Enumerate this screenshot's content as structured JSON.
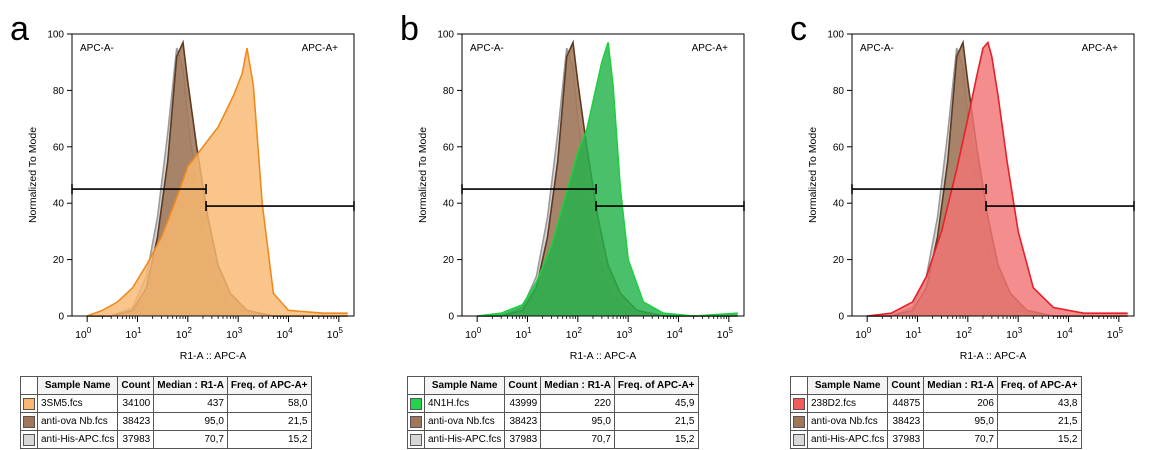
{
  "chart_data": [
    {
      "type": "area",
      "panel": "a",
      "ylabel": "Normalized To Mode",
      "xlabel": "R1-A :: APC-A",
      "x_scale": "log",
      "xlim": [
        0.5,
        200000
      ],
      "ylim": [
        0,
        100
      ],
      "y_ticks": [
        "0",
        "20",
        "40",
        "60",
        "80",
        "100"
      ],
      "x_ticks": [
        "0",
        "1",
        "2",
        "3",
        "4",
        "5"
      ],
      "gates": [
        {
          "label": "APC-A-",
          "y": 45,
          "x_from": 0.5,
          "x_to": 230
        },
        {
          "label": "APC-A+",
          "y": 39,
          "x_from": 230,
          "x_to": 200000
        }
      ],
      "series": [
        {
          "name": "3SM5.fcs",
          "role": "sample",
          "fill": "#f9b870",
          "line": "#ef8a1e",
          "x": [
            1,
            2,
            4,
            8,
            15,
            30,
            60,
            100,
            200,
            400,
            800,
            1200,
            1500,
            2000,
            3000,
            5000,
            10000,
            50000,
            150000
          ],
          "y": [
            0,
            2,
            5,
            10,
            18,
            28,
            42,
            53,
            60,
            67,
            78,
            86,
            95,
            82,
            40,
            8,
            2,
            1,
            1
          ]
        },
        {
          "name": "anti-ova Nb.fcs",
          "role": "control",
          "fill": "#a0775a",
          "line": "#5e3a22",
          "x": [
            1,
            3,
            8,
            15,
            25,
            40,
            60,
            80,
            100,
            150,
            250,
            400,
            700,
            1500,
            5000,
            150000
          ],
          "y": [
            0,
            0,
            2,
            10,
            28,
            55,
            92,
            97,
            83,
            60,
            35,
            18,
            8,
            2,
            0,
            0
          ]
        },
        {
          "name": "anti-His-APC.fcs",
          "role": "control",
          "fill": "#cfcfcf",
          "line": "#9a9a9a",
          "x": [
            1,
            3,
            8,
            15,
            25,
            40,
            60,
            80,
            100,
            150,
            250,
            400,
            700,
            1500,
            5000,
            150000
          ],
          "y": [
            0,
            0,
            3,
            14,
            35,
            65,
            95,
            88,
            70,
            45,
            22,
            10,
            4,
            1,
            0,
            0
          ]
        }
      ],
      "table": {
        "headers": [
          "Sample Name",
          "Count",
          "Median : R1-A",
          "Freq. of APC-A+"
        ],
        "rows": [
          {
            "color": "#f9b870",
            "name": "3SM5.fcs",
            "count": "34100",
            "median": "437",
            "freq": "58,0"
          },
          {
            "color": "#a0775a",
            "name": "anti-ova Nb.fcs",
            "count": "38423",
            "median": "95,0",
            "freq": "21,5"
          },
          {
            "color": "#d8d8d8",
            "name": "anti-His-APC.fcs",
            "count": "37983",
            "median": "70,7",
            "freq": "15,2"
          }
        ]
      }
    },
    {
      "type": "area",
      "panel": "b",
      "ylabel": "Normalized To Mode",
      "xlabel": "R1-A :: APC-A",
      "x_scale": "log",
      "xlim": [
        0.5,
        200000
      ],
      "ylim": [
        0,
        100
      ],
      "y_ticks": [
        "0",
        "20",
        "40",
        "60",
        "80",
        "100"
      ],
      "x_ticks": [
        "0",
        "1",
        "2",
        "3",
        "4",
        "5"
      ],
      "gates": [
        {
          "label": "APC-A-",
          "y": 45,
          "x_from": 0.5,
          "x_to": 230
        },
        {
          "label": "APC-A+",
          "y": 39,
          "x_from": 230,
          "x_to": 200000
        }
      ],
      "series": [
        {
          "name": "4N1H.fcs",
          "role": "sample",
          "fill": "#22b24a",
          "line": "#1ecf3f",
          "x": [
            1,
            3,
            8,
            15,
            30,
            60,
            100,
            150,
            200,
            300,
            400,
            500,
            700,
            1000,
            2000,
            5000,
            20000,
            150000
          ],
          "y": [
            0,
            1,
            4,
            12,
            25,
            44,
            58,
            66,
            76,
            90,
            97,
            82,
            45,
            20,
            5,
            1,
            0,
            1
          ]
        },
        {
          "name": "anti-ova Nb.fcs",
          "role": "control",
          "fill": "#a0775a",
          "line": "#5e3a22",
          "x": [
            1,
            3,
            8,
            15,
            25,
            40,
            60,
            80,
            100,
            150,
            250,
            400,
            700,
            1500,
            5000,
            150000
          ],
          "y": [
            0,
            0,
            2,
            10,
            28,
            55,
            92,
            97,
            83,
            60,
            35,
            18,
            8,
            2,
            0,
            0
          ]
        },
        {
          "name": "anti-His-APC.fcs",
          "role": "control",
          "fill": "#cfcfcf",
          "line": "#9a9a9a",
          "x": [
            1,
            3,
            8,
            15,
            25,
            40,
            60,
            80,
            100,
            150,
            250,
            400,
            700,
            1500,
            5000,
            150000
          ],
          "y": [
            0,
            0,
            3,
            14,
            35,
            65,
            95,
            88,
            70,
            45,
            22,
            10,
            4,
            1,
            0,
            0
          ]
        }
      ],
      "table": {
        "headers": [
          "Sample Name",
          "Count",
          "Median : R1-A",
          "Freq. of APC-A+"
        ],
        "rows": [
          {
            "color": "#22d44a",
            "name": "4N1H.fcs",
            "count": "43999",
            "median": "220",
            "freq": "45,9"
          },
          {
            "color": "#a0775a",
            "name": "anti-ova Nb.fcs",
            "count": "38423",
            "median": "95,0",
            "freq": "21,5"
          },
          {
            "color": "#d8d8d8",
            "name": "anti-His-APC.fcs",
            "count": "37983",
            "median": "70,7",
            "freq": "15,2"
          }
        ]
      }
    },
    {
      "type": "area",
      "panel": "c",
      "ylabel": "Normalized To Mode",
      "xlabel": "R1-A :: APC-A",
      "x_scale": "log",
      "xlim": [
        0.5,
        200000
      ],
      "ylim": [
        0,
        100
      ],
      "y_ticks": [
        "0",
        "20",
        "40",
        "60",
        "80",
        "100"
      ],
      "x_ticks": [
        "0",
        "1",
        "2",
        "3",
        "4",
        "5"
      ],
      "gates": [
        {
          "label": "APC-A-",
          "y": 45,
          "x_from": 0.5,
          "x_to": 230
        },
        {
          "label": "APC-A+",
          "y": 39,
          "x_from": 230,
          "x_to": 200000
        }
      ],
      "series": [
        {
          "name": "238D2.fcs",
          "role": "sample",
          "fill": "#f27474",
          "line": "#e8202a",
          "x": [
            1,
            3,
            8,
            15,
            30,
            60,
            100,
            150,
            200,
            250,
            300,
            400,
            600,
            1000,
            2000,
            5000,
            20000,
            150000
          ],
          "y": [
            0,
            1,
            5,
            14,
            30,
            52,
            70,
            85,
            95,
            97,
            92,
            78,
            55,
            30,
            10,
            3,
            1,
            1
          ]
        },
        {
          "name": "anti-ova Nb.fcs",
          "role": "control",
          "fill": "#a0775a",
          "line": "#5e3a22",
          "x": [
            1,
            3,
            8,
            15,
            25,
            40,
            60,
            80,
            100,
            150,
            250,
            400,
            700,
            1500,
            5000,
            150000
          ],
          "y": [
            0,
            0,
            2,
            10,
            28,
            55,
            92,
            97,
            83,
            60,
            35,
            18,
            8,
            2,
            0,
            0
          ]
        },
        {
          "name": "anti-His-APC.fcs",
          "role": "control",
          "fill": "#cfcfcf",
          "line": "#9a9a9a",
          "x": [
            1,
            3,
            8,
            15,
            25,
            40,
            60,
            80,
            100,
            150,
            250,
            400,
            700,
            1500,
            5000,
            150000
          ],
          "y": [
            0,
            0,
            3,
            14,
            35,
            65,
            95,
            88,
            70,
            45,
            22,
            10,
            4,
            1,
            0,
            0
          ]
        }
      ],
      "table": {
        "headers": [
          "Sample Name",
          "Count",
          "Median : R1-A",
          "Freq. of APC-A+"
        ],
        "rows": [
          {
            "color": "#f45a5a",
            "name": "238D2.fcs",
            "count": "44875",
            "median": "206",
            "freq": "43,8"
          },
          {
            "color": "#a0775a",
            "name": "anti-ova Nb.fcs",
            "count": "38423",
            "median": "95,0",
            "freq": "21,5"
          },
          {
            "color": "#d8d8d8",
            "name": "anti-His-APC.fcs",
            "count": "37983",
            "median": "70,7",
            "freq": "15,2"
          }
        ]
      }
    }
  ]
}
